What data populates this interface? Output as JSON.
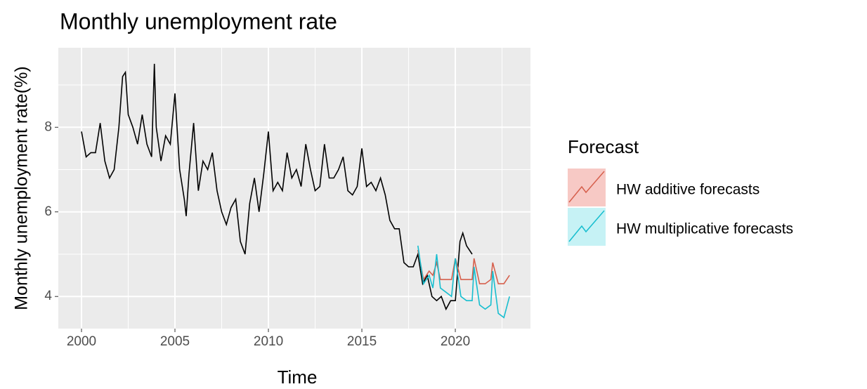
{
  "chart_data": {
    "type": "line",
    "title": "Monthly unemployment rate",
    "x_label": "Time",
    "y_label": "Monthly unemployment rate(%)",
    "legend_title": "Forecast",
    "legend_position": "right",
    "grid": true,
    "xlim": [
      1998.76,
      2024.02
    ],
    "ylim": [
      3.24,
      9.88
    ],
    "xticks": [
      2000,
      2005,
      2010,
      2015,
      2020
    ],
    "yticks": [
      4,
      6,
      8
    ],
    "x_minor_grid": [
      2002.5,
      2007.5,
      2012.5,
      2017.5,
      2022.5
    ],
    "y_minor_grid": [
      5,
      7,
      9
    ],
    "color": "#000000",
    "x": [
      2000.0,
      2000.25,
      2000.5,
      2000.75,
      2001.0,
      2001.25,
      2001.5,
      2001.75,
      2002.0,
      2002.2,
      2002.35,
      2002.5,
      2002.75,
      2003.0,
      2003.25,
      2003.5,
      2003.75,
      2003.9,
      2004.0,
      2004.25,
      2004.5,
      2004.75,
      2005.0,
      2005.25,
      2005.5,
      2005.6,
      2005.75,
      2006.0,
      2006.25,
      2006.5,
      2006.75,
      2007.0,
      2007.25,
      2007.5,
      2007.75,
      2008.0,
      2008.25,
      2008.5,
      2008.75,
      2009.0,
      2009.25,
      2009.5,
      2009.75,
      2010.0,
      2010.25,
      2010.5,
      2010.75,
      2011.0,
      2011.25,
      2011.5,
      2011.75,
      2012.0,
      2012.25,
      2012.5,
      2012.75,
      2013.0,
      2013.25,
      2013.5,
      2013.75,
      2014.0,
      2014.25,
      2014.5,
      2014.75,
      2015.0,
      2015.25,
      2015.5,
      2015.75,
      2016.0,
      2016.25,
      2016.5,
      2016.75,
      2017.0,
      2017.25,
      2017.5,
      2017.75,
      2018.0,
      2018.25,
      2018.5,
      2018.75,
      2019.0,
      2019.25,
      2019.5,
      2019.75,
      2020.0,
      2020.25,
      2020.4,
      2020.6,
      2020.9
    ],
    "values": [
      7.9,
      7.3,
      7.4,
      7.4,
      8.1,
      7.2,
      6.8,
      7.0,
      8.0,
      9.2,
      9.3,
      8.3,
      8.0,
      7.6,
      8.3,
      7.6,
      7.3,
      9.5,
      8.0,
      7.2,
      7.8,
      7.6,
      8.8,
      7.0,
      6.3,
      5.9,
      6.9,
      8.1,
      6.5,
      7.2,
      7.0,
      7.4,
      6.5,
      6.0,
      5.7,
      6.1,
      6.3,
      5.3,
      5.0,
      6.2,
      6.8,
      6.0,
      6.9,
      7.9,
      6.5,
      6.7,
      6.5,
      7.4,
      6.8,
      7.0,
      6.6,
      7.6,
      7.0,
      6.5,
      6.6,
      7.6,
      6.8,
      6.8,
      7.0,
      7.3,
      6.5,
      6.4,
      6.6,
      7.5,
      6.6,
      6.7,
      6.5,
      6.8,
      6.4,
      5.8,
      5.6,
      5.6,
      4.8,
      4.7,
      4.7,
      5.0,
      4.3,
      4.5,
      4.0,
      3.9,
      4.0,
      3.7,
      3.9,
      3.9,
      5.3,
      5.5,
      5.2,
      5.0
    ],
    "series": [
      {
        "name": "HW additive forecasts",
        "color": "#d6604d",
        "key_fill": "#f7c9c5",
        "x": [
          2018.0,
          2018.3,
          2018.6,
          2018.8,
          2019.0,
          2019.2,
          2019.5,
          2019.8,
          2020.0,
          2020.3,
          2020.6,
          2020.9,
          2021.0,
          2021.3,
          2021.6,
          2021.9,
          2022.0,
          2022.3,
          2022.6,
          2022.9
        ],
        "values": [
          5.1,
          4.4,
          4.6,
          4.5,
          4.8,
          4.4,
          4.4,
          4.4,
          4.9,
          4.4,
          4.4,
          4.4,
          4.9,
          4.3,
          4.3,
          4.4,
          4.8,
          4.3,
          4.3,
          4.5
        ]
      },
      {
        "name": "HW multiplicative forecasts",
        "color": "#17becf",
        "key_fill": "#c6f2f5",
        "x": [
          2018.0,
          2018.3,
          2018.6,
          2018.8,
          2019.0,
          2019.2,
          2019.5,
          2019.8,
          2020.0,
          2020.3,
          2020.6,
          2020.9,
          2021.0,
          2021.3,
          2021.6,
          2021.9,
          2022.0,
          2022.3,
          2022.6,
          2022.9
        ],
        "values": [
          5.2,
          4.3,
          4.5,
          4.2,
          5.0,
          4.2,
          4.1,
          4.0,
          4.9,
          4.0,
          3.9,
          3.9,
          4.7,
          3.8,
          3.7,
          3.8,
          4.6,
          3.6,
          3.5,
          4.0
        ]
      }
    ]
  }
}
